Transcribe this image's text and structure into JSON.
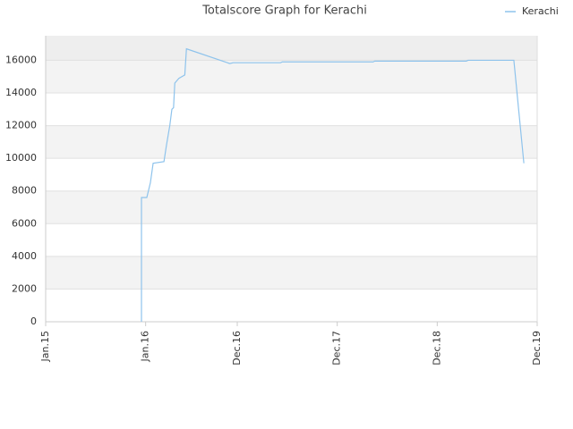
{
  "chart_data": {
    "type": "line",
    "title": "Totalscore Graph for Kerachi",
    "x": [
      11.5,
      11.5,
      12.14,
      12.57,
      12.9,
      14.2,
      14.5,
      14.9,
      15.15,
      15.35,
      15.5,
      16.0,
      16.7,
      16.9,
      22.1,
      22.5,
      28.2,
      28.4,
      39.3,
      39.5,
      50.5,
      50.7,
      56.2,
      57.4
    ],
    "series": [
      {
        "name": "Kerachi",
        "color": "#8ec3ec",
        "values": [
          0,
          7600,
          7600,
          8500,
          9700,
          9800,
          10800,
          12000,
          13000,
          13100,
          14600,
          14900,
          15100,
          16700,
          15800,
          15850,
          15850,
          15900,
          15900,
          15950,
          15950,
          16000,
          16000,
          9700
        ]
      }
    ],
    "xlim": [
      0,
      59
    ],
    "xticks": [
      {
        "value": 0,
        "label": "Jan.15"
      },
      {
        "value": 12,
        "label": "Jan.16"
      },
      {
        "value": 23,
        "label": "Dec.16"
      },
      {
        "value": 35,
        "label": "Dec.17"
      },
      {
        "value": 47,
        "label": "Dec.18"
      },
      {
        "value": 59,
        "label": "Dec.19"
      }
    ],
    "ylim": [
      0,
      17500
    ],
    "yticks": [
      0,
      2000,
      4000,
      6000,
      8000,
      10000,
      12000,
      14000,
      16000
    ],
    "grid": true,
    "legend": "top-right"
  }
}
